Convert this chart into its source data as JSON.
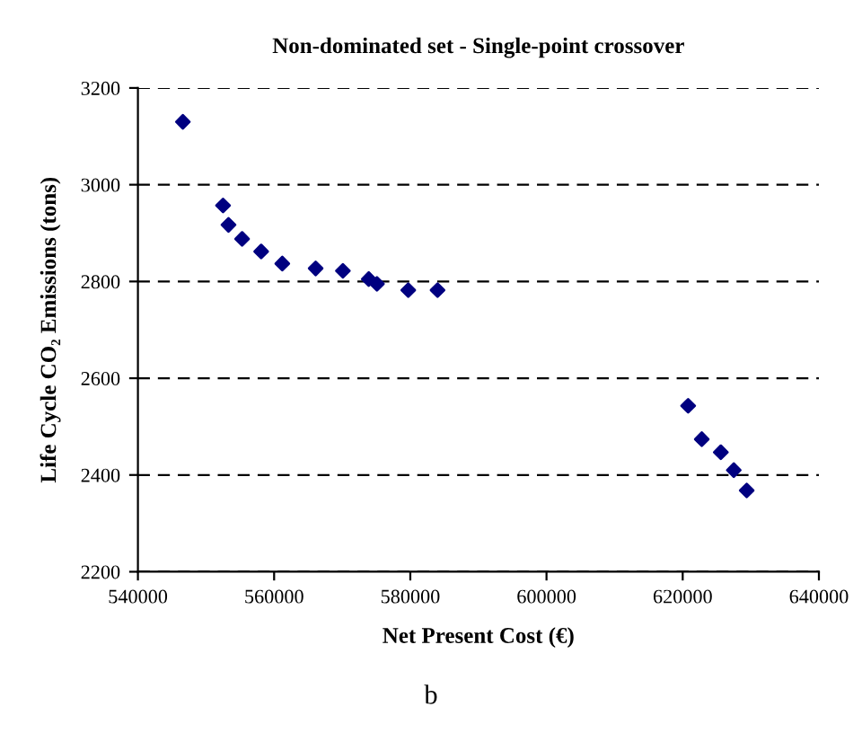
{
  "chart_data": {
    "type": "scatter",
    "title": "Non-dominated set - Single-point crossover",
    "xlabel": "Net Present Cost (€)",
    "ylabel": "Life Cycle CO₂ Emissions (tons)",
    "x": [
      546600,
      552500,
      553300,
      555300,
      558100,
      561200,
      566100,
      570100,
      573900,
      575100,
      579700,
      584000,
      620800,
      622800,
      625600,
      627500,
      629400
    ],
    "series": [
      {
        "color": "#000080",
        "values": [
          3130,
          2957,
          2917,
          2888,
          2862,
          2837,
          2827,
          2822,
          2805,
          2795,
          2782,
          2782,
          2543,
          2474,
          2447,
          2410,
          2368
        ]
      }
    ],
    "xlim": [
      540000,
      640000
    ],
    "xticks": [
      540000,
      560000,
      580000,
      600000,
      620000,
      640000
    ],
    "ylim": [
      2200,
      3200
    ],
    "yticks": [
      2200,
      2400,
      2600,
      2800,
      3000,
      3200
    ],
    "grid": "y",
    "marker": "diamond",
    "legend": false,
    "annotations": [
      "b"
    ]
  }
}
